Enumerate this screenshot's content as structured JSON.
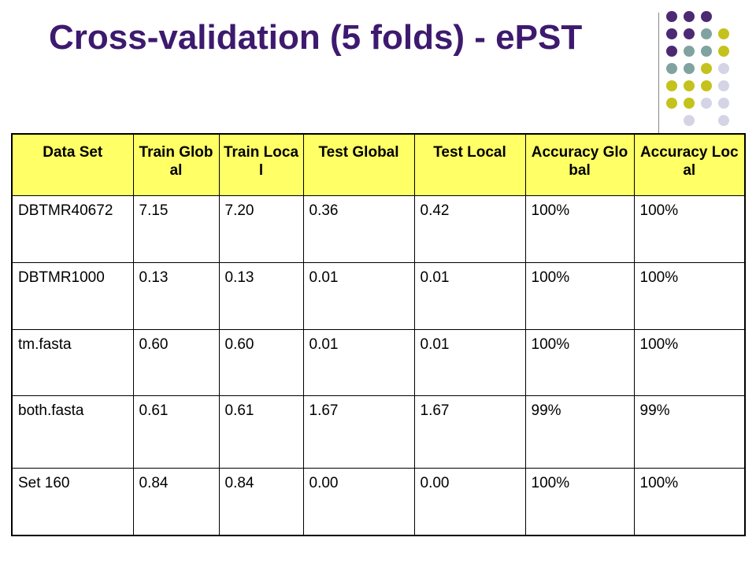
{
  "title": "Cross-validation (5 folds) - ePST",
  "colors": {
    "title": "#3d1a6e",
    "header_fill": "#ffff66",
    "dot_purple": "#4b2a73",
    "dot_teal": "#7fa3a0",
    "dot_yellow": "#c4c21c",
    "dot_lavender": "#d4d4e6"
  },
  "table": {
    "headers": [
      "Data Set",
      "Train Global",
      "Train Local",
      "Test Global",
      "Test Local",
      "Accuracy Global",
      "Accuracy Local"
    ],
    "rows": [
      [
        "DBTMR40672",
        "7.15",
        "7.20",
        "0.36",
        "0.42",
        "100%",
        "100%"
      ],
      [
        "DBTMR1000",
        "0.13",
        "0.13",
        "0.01",
        "0.01",
        "100%",
        "100%"
      ],
      [
        "tm.fasta",
        "0.60",
        "0.60",
        "0.01",
        "0.01",
        "100%",
        "100%"
      ],
      [
        "both.fasta",
        "0.61",
        "0.61",
        "1.67",
        "1.67",
        "99%",
        "99%"
      ],
      [
        "Set 160",
        "0.84",
        "0.84",
        "0.00",
        "0.00",
        "100%",
        "100%"
      ]
    ]
  }
}
